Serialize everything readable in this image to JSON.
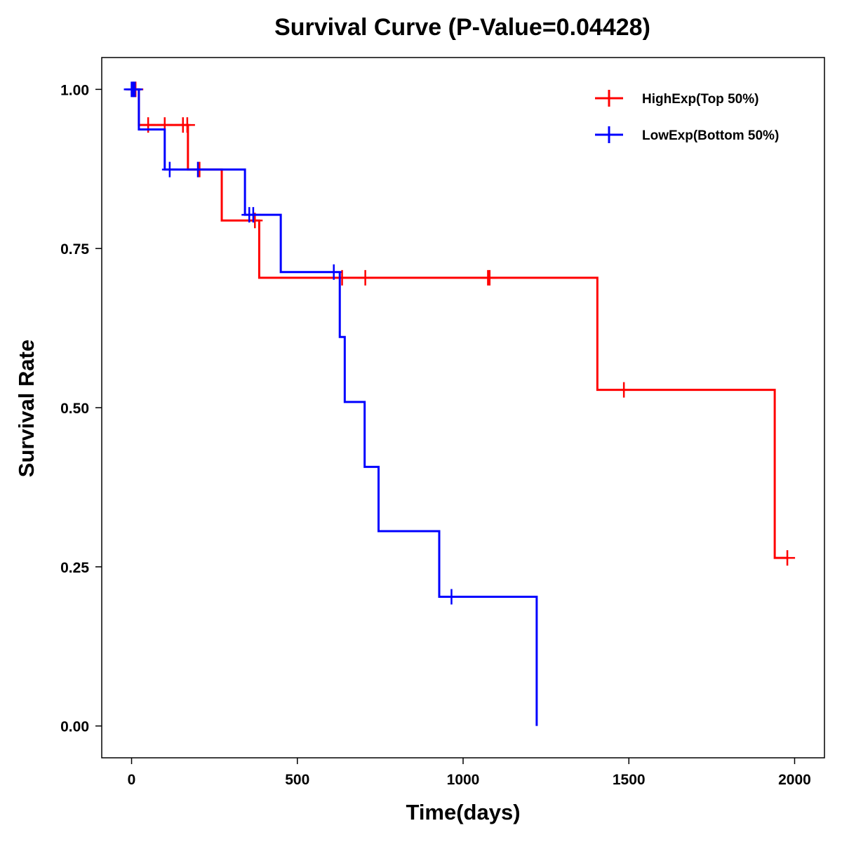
{
  "chart_data": {
    "type": "line",
    "subtype": "kaplan-meier step curve",
    "title": "Survival Curve (P-Value=0.04428)",
    "xlabel": "Time(days)",
    "ylabel": "Survival Rate",
    "xlim": [
      -90,
      2090
    ],
    "ylim": [
      -0.05,
      1.05
    ],
    "x_ticks": [
      0,
      500,
      1000,
      1500,
      2000
    ],
    "x_tick_labels": [
      "0",
      "500",
      "1000",
      "1500",
      "2000"
    ],
    "y_ticks": [
      0,
      0.25,
      0.5,
      0.75,
      1
    ],
    "y_tick_labels": [
      "0.00",
      "0.25",
      "0.50",
      "0.75",
      "1.00"
    ],
    "grid": false,
    "legend_position": "top-right",
    "series": [
      {
        "name": "HighExp(Top 50%)",
        "color": "#ff0000",
        "steps": [
          [
            0,
            1.0
          ],
          [
            22,
            0.944
          ],
          [
            170,
            0.874
          ],
          [
            272,
            0.794
          ],
          [
            385,
            0.704
          ],
          [
            1405,
            0.528
          ],
          [
            1940,
            0.264
          ],
          [
            1980,
            0.264
          ]
        ],
        "censored": [
          [
            5,
            1.0
          ],
          [
            12,
            1.0
          ],
          [
            50,
            0.944
          ],
          [
            100,
            0.944
          ],
          [
            155,
            0.944
          ],
          [
            168,
            0.944
          ],
          [
            205,
            0.874
          ],
          [
            372,
            0.794
          ],
          [
            635,
            0.704
          ],
          [
            705,
            0.704
          ],
          [
            1075,
            0.704
          ],
          [
            1080,
            0.704
          ],
          [
            1485,
            0.528
          ],
          [
            1978,
            0.264
          ]
        ]
      },
      {
        "name": "LowExp(Bottom 50%)",
        "color": "#0000ff",
        "steps": [
          [
            0,
            1.0
          ],
          [
            22,
            0.937
          ],
          [
            100,
            0.874
          ],
          [
            342,
            0.803
          ],
          [
            450,
            0.713
          ],
          [
            628,
            0.611
          ],
          [
            643,
            0.509
          ],
          [
            703,
            0.407
          ],
          [
            745,
            0.306
          ],
          [
            928,
            0.203
          ],
          [
            1222,
            0.0
          ]
        ],
        "censored": [
          [
            0,
            1.0
          ],
          [
            5,
            1.0
          ],
          [
            10,
            1.0
          ],
          [
            115,
            0.874
          ],
          [
            200,
            0.874
          ],
          [
            355,
            0.803
          ],
          [
            367,
            0.803
          ],
          [
            610,
            0.713
          ],
          [
            965,
            0.203
          ]
        ]
      }
    ]
  }
}
